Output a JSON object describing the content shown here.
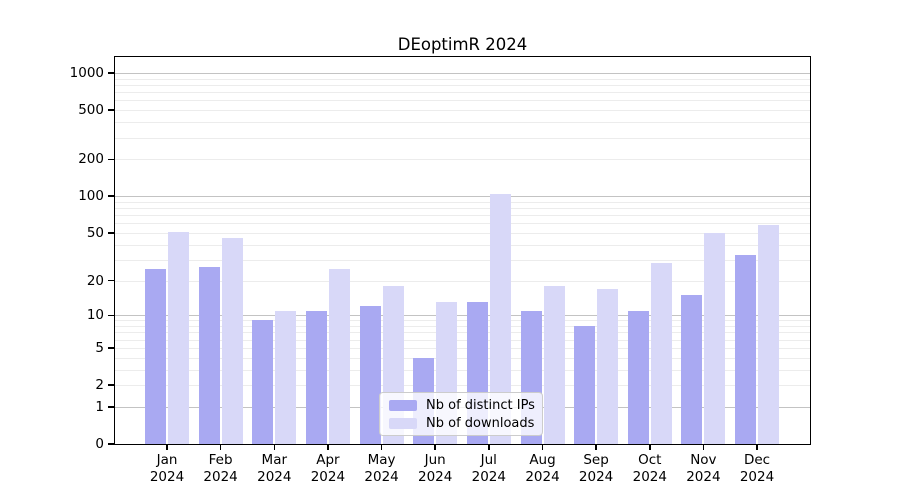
{
  "chart_data": {
    "type": "bar",
    "title": "DEoptimR 2024",
    "categories": [
      "Jan",
      "Feb",
      "Mar",
      "Apr",
      "May",
      "Jun",
      "Jul",
      "Aug",
      "Sep",
      "Oct",
      "Nov",
      "Dec"
    ],
    "year": "2024",
    "series": [
      {
        "name": "Nb of distinct IPs",
        "color": "#a9a9f2",
        "values": [
          25,
          26,
          9,
          11,
          12,
          4,
          13,
          11,
          8,
          11,
          15,
          33
        ]
      },
      {
        "name": "Nb of downloads",
        "color": "#d8d8f8",
        "values": [
          51,
          45,
          11,
          25,
          18,
          13,
          104,
          18,
          17,
          28,
          50,
          58
        ]
      }
    ],
    "xlabel": "",
    "ylabel": "",
    "yscale": "log10(value+1)",
    "ylim": [
      0,
      1001
    ],
    "yticks": [
      0,
      1,
      2,
      5,
      10,
      20,
      50,
      100,
      200,
      500,
      1000
    ],
    "grid": {
      "on": true,
      "minor_color": "#ececec",
      "major_color": "#c3c3c3",
      "major_at": [
        1,
        10,
        100,
        1000
      ]
    },
    "legend": {
      "position": "inside-bottom-center",
      "entries": [
        "Nb of distinct IPs",
        "Nb of downloads"
      ]
    }
  }
}
